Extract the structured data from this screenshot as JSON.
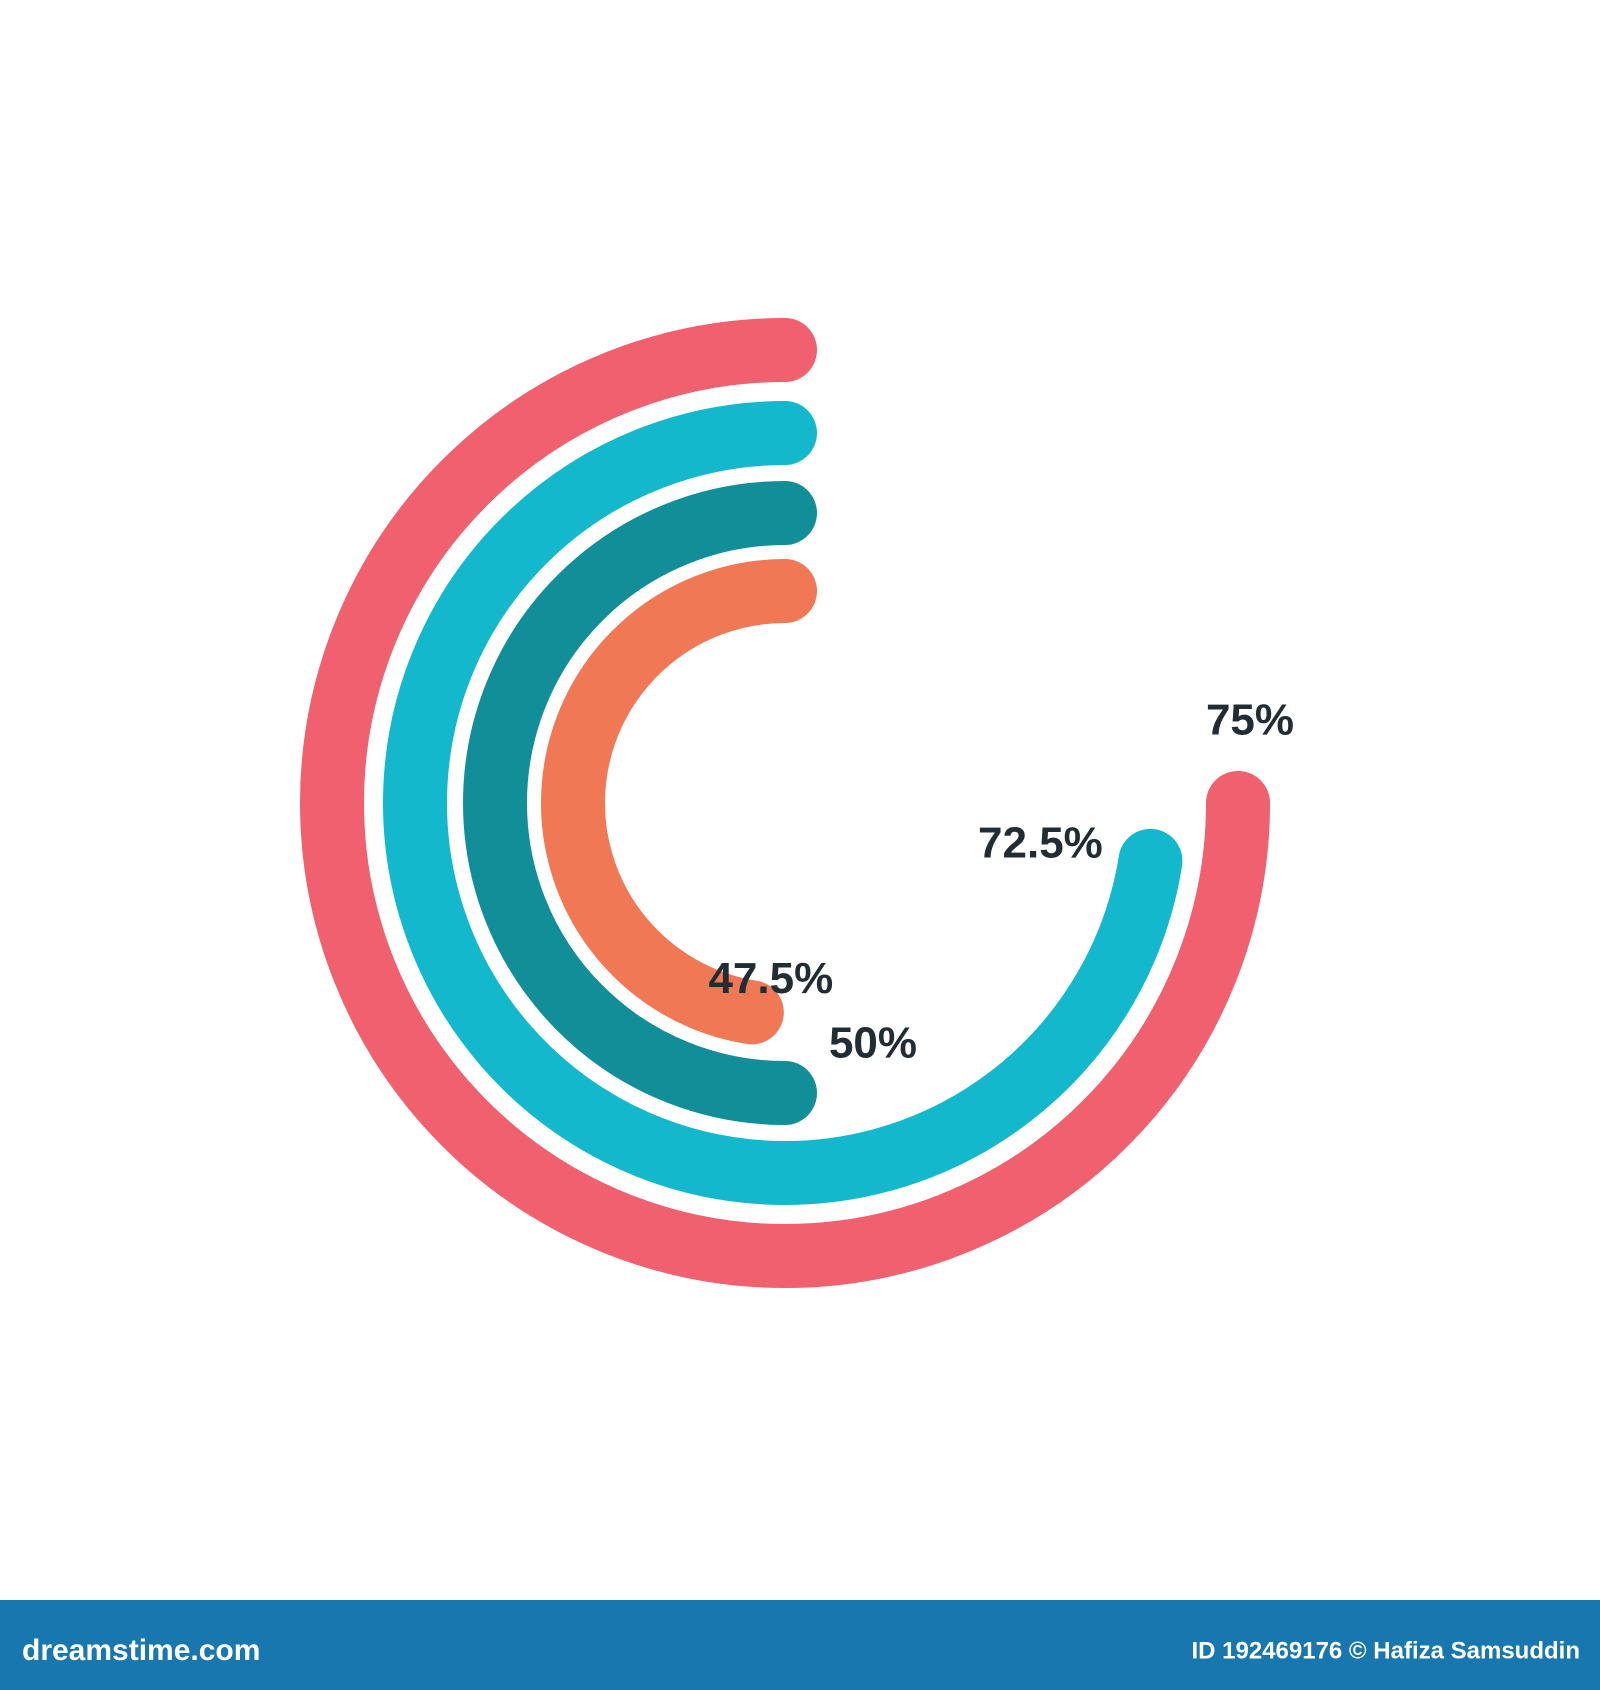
{
  "chart_data": {
    "type": "radial-bar",
    "values": [
      75,
      72.5,
      50,
      47.5
    ],
    "value_labels": [
      "75%",
      "72.5%",
      "50%",
      "47.5%"
    ],
    "colors": [
      "#f0606e",
      "#14b8cc",
      "#128e99",
      "#f07855"
    ],
    "ylim": [
      0,
      100
    ]
  },
  "footer": {
    "site": "dreamstime.com",
    "credit": "ID 192469176 © Hafiza Samsuddin"
  }
}
